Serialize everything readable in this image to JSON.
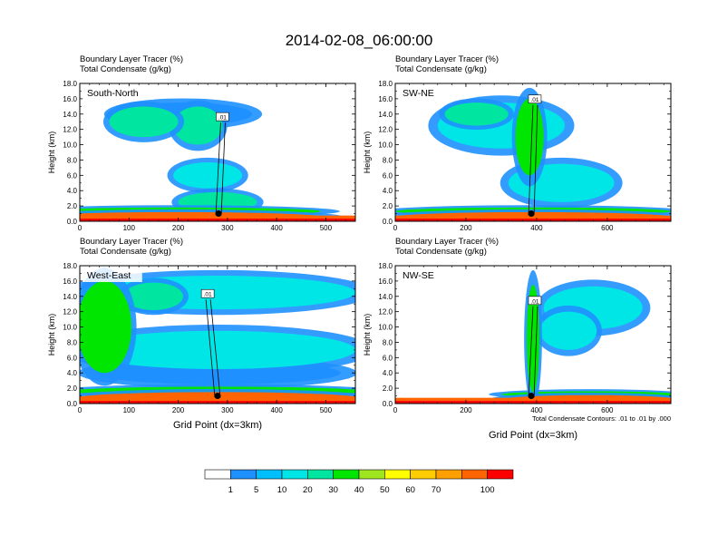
{
  "figure": {
    "title": "2014-02-08_06:00:00"
  },
  "chart_data": [
    {
      "type": "heatmap",
      "panel_label": "South-North",
      "title_line1": "Boundary Layer Tracer   (%)",
      "title_line2": "Total Condensate   (g/kg)",
      "ylabel": "Height (km)",
      "xlabel": "",
      "xlim": [
        0,
        560
      ],
      "ylim": [
        0,
        18
      ],
      "xticks": [
        "0",
        "100",
        "200",
        "300",
        "400",
        "500"
      ],
      "xtick_values": [
        0,
        100,
        200,
        300,
        400,
        500
      ],
      "yticks": [
        "0.0",
        "2.0",
        "4.0",
        "6.0",
        "8.0",
        "10.0",
        "12.0",
        "14.0",
        "16.0",
        "18.0"
      ],
      "ytick_values": [
        0,
        2,
        4,
        6,
        8,
        10,
        12,
        14,
        16,
        18
      ],
      "contour_label": ".01",
      "contour_label_pos": [
        290,
        13.6
      ],
      "marker": [
        282,
        1.0
      ],
      "features": [
        {
          "cx": 200,
          "cy": 0.5,
          "rx": 300,
          "ry": 0.7,
          "level": 70
        },
        {
          "cx": 200,
          "cy": 1.3,
          "rx": 290,
          "ry": 0.5,
          "level": 30
        },
        {
          "cx": 210,
          "cy": 14.0,
          "rx": 140,
          "ry": 1.5,
          "level": 5
        },
        {
          "cx": 240,
          "cy": 12.5,
          "rx": 50,
          "ry": 2.5,
          "level": 20
        },
        {
          "cx": 260,
          "cy": 6.0,
          "rx": 70,
          "ry": 1.7,
          "level": 10
        },
        {
          "cx": 280,
          "cy": 2.5,
          "rx": 80,
          "ry": 1.3,
          "level": 20
        },
        {
          "cx": 130,
          "cy": 13.0,
          "rx": 70,
          "ry": 2.0,
          "level": 20
        }
      ]
    },
    {
      "type": "heatmap",
      "panel_label": "SW-NE",
      "title_line1": "Boundary Layer Tracer   (%)",
      "title_line2": "Total Condensate   (g/kg)",
      "ylabel": "Height (km)",
      "xlabel": "",
      "xlim": [
        0,
        780
      ],
      "ylim": [
        0,
        18
      ],
      "xticks": [
        "0",
        "200",
        "400",
        "600"
      ],
      "xtick_values": [
        0,
        200,
        400,
        600
      ],
      "yticks": [
        "0.0",
        "2.0",
        "4.0",
        "6.0",
        "8.0",
        "10.0",
        "12.0",
        "14.0",
        "16.0",
        "18.0"
      ],
      "ytick_values": [
        0,
        2,
        4,
        6,
        8,
        10,
        12,
        14,
        16,
        18
      ],
      "contour_label": ".01",
      "contour_label_pos": [
        395,
        15.9
      ],
      "marker": [
        385,
        1.0
      ],
      "features": [
        {
          "cx": 390,
          "cy": 0.5,
          "rx": 400,
          "ry": 0.7,
          "level": 70
        },
        {
          "cx": 390,
          "cy": 1.3,
          "rx": 390,
          "ry": 0.5,
          "level": 30
        },
        {
          "cx": 300,
          "cy": 12.5,
          "rx": 180,
          "ry": 3.0,
          "level": 10
        },
        {
          "cx": 380,
          "cy": 11.0,
          "rx": 40,
          "ry": 5.0,
          "level": 30
        },
        {
          "cx": 470,
          "cy": 5.0,
          "rx": 150,
          "ry": 2.5,
          "level": 10
        },
        {
          "cx": 230,
          "cy": 14.0,
          "rx": 90,
          "ry": 1.5,
          "level": 20
        }
      ]
    },
    {
      "type": "heatmap",
      "panel_label": "West-East",
      "title_line1": "Boundary Layer Tracer   (%)",
      "title_line2": "Total Condensate   (g/kg)",
      "ylabel": "Height (km)",
      "xlabel": "Grid Point (dx=3km)",
      "xlim": [
        0,
        560
      ],
      "ylim": [
        0,
        18
      ],
      "xticks": [
        "0",
        "100",
        "200",
        "300",
        "400",
        "500"
      ],
      "xtick_values": [
        0,
        100,
        200,
        300,
        400,
        500
      ],
      "yticks": [
        "0.0",
        "2.0",
        "4.0",
        "6.0",
        "8.0",
        "10.0",
        "12.0",
        "14.0",
        "16.0",
        "18.0"
      ],
      "ytick_values": [
        0,
        2,
        4,
        6,
        8,
        10,
        12,
        14,
        16,
        18
      ],
      "contour_label": ".01",
      "contour_label_pos": [
        260,
        14.3
      ],
      "marker": [
        280,
        1.0
      ],
      "features": [
        {
          "cx": 280,
          "cy": 0.6,
          "rx": 300,
          "ry": 0.9,
          "level": 70
        },
        {
          "cx": 280,
          "cy": 1.6,
          "rx": 300,
          "ry": 0.6,
          "level": 30
        },
        {
          "cx": 280,
          "cy": 7.0,
          "rx": 280,
          "ry": 2.5,
          "level": 10
        },
        {
          "cx": 280,
          "cy": 14.5,
          "rx": 280,
          "ry": 2.2,
          "level": 10
        },
        {
          "cx": 50,
          "cy": 10.0,
          "rx": 55,
          "ry": 6.0,
          "level": 30
        },
        {
          "cx": 280,
          "cy": 4.0,
          "rx": 250,
          "ry": 1.5,
          "level": 5
        },
        {
          "cx": 150,
          "cy": 14.0,
          "rx": 60,
          "ry": 1.8,
          "level": 20
        }
      ]
    },
    {
      "type": "heatmap",
      "panel_label": "NW-SE",
      "title_line1": "Boundary Layer Tracer   (%)",
      "title_line2": "Total Condensate   (g/kg)",
      "ylabel": "Height (km)",
      "xlabel": "Grid Point (dx=3km)",
      "xlim": [
        0,
        780
      ],
      "ylim": [
        0,
        18
      ],
      "xticks": [
        "0",
        "200",
        "400",
        "600"
      ],
      "xtick_values": [
        0,
        200,
        400,
        600
      ],
      "yticks": [
        "0.0",
        "2.0",
        "4.0",
        "6.0",
        "8.0",
        "10.0",
        "12.0",
        "14.0",
        "16.0",
        "18.0"
      ],
      "ytick_values": [
        0,
        2,
        4,
        6,
        8,
        10,
        12,
        14,
        16,
        18
      ],
      "contour_label": ".01",
      "contour_label_pos": [
        395,
        13.4
      ],
      "marker": [
        385,
        1.0
      ],
      "note": "Total Condensate Contours: .01 to .01 by .000",
      "features": [
        {
          "cx": 550,
          "cy": 0.5,
          "rx": 250,
          "ry": 0.6,
          "level": 70
        },
        {
          "cx": 550,
          "cy": 1.2,
          "rx": 250,
          "ry": 0.4,
          "level": 30
        },
        {
          "cx": 560,
          "cy": 12.5,
          "rx": 140,
          "ry": 2.8,
          "level": 10
        },
        {
          "cx": 490,
          "cy": 9.5,
          "rx": 80,
          "ry": 2.5,
          "level": 10
        },
        {
          "cx": 390,
          "cy": 8.5,
          "rx": 18,
          "ry": 7.0,
          "level": 30
        }
      ]
    }
  ],
  "colorbar": {
    "labels": [
      "1",
      "5",
      "10",
      "20",
      "30",
      "40",
      "50",
      "60",
      "70",
      "100"
    ],
    "colors": [
      "#ffffff",
      "#1e90ff",
      "#00bfff",
      "#00e6e6",
      "#00e6a0",
      "#00e600",
      "#a0e620",
      "#ffff00",
      "#ffcc00",
      "#ffa000",
      "#ff6400",
      "#ff0000"
    ]
  },
  "level_colors": {
    "5": "#1e90ff",
    "10": "#00e6e6",
    "20": "#00e6a0",
    "30": "#00e600",
    "50": "#ffff00",
    "70": "#ff6400"
  }
}
